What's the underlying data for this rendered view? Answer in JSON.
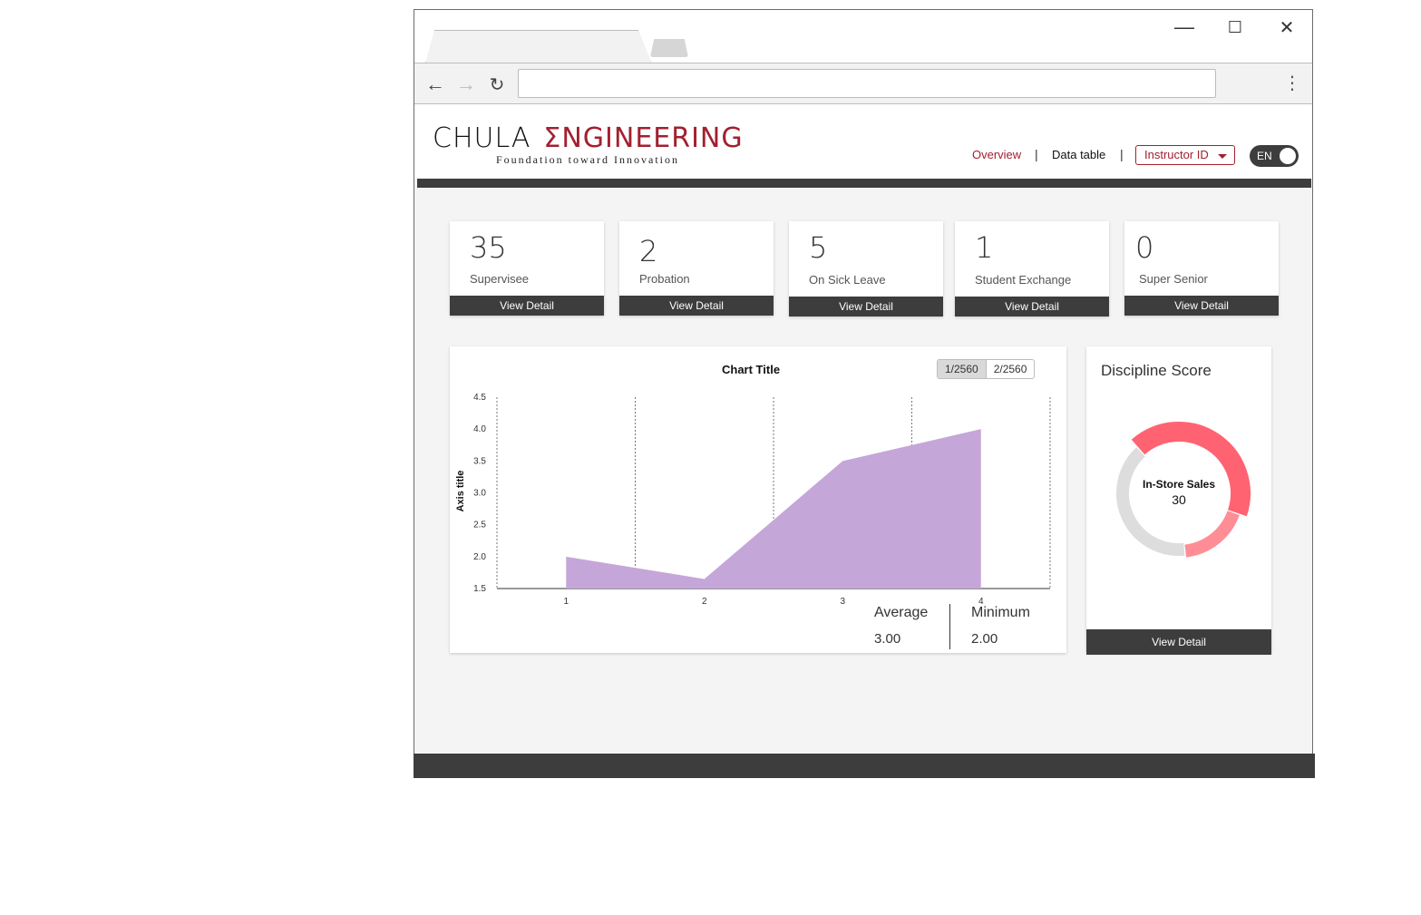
{
  "browser": {
    "address": "",
    "controls": {
      "minimize": "—",
      "maximize": "☐",
      "close": "✕"
    }
  },
  "logo": {
    "part1": "CHULA",
    "part2": "ΣNGINEERING",
    "tagline": "Foundation toward Innovation"
  },
  "nav": {
    "overview": "Overview",
    "datatable": "Data table",
    "separator": "|",
    "instructor": "Instructor ID",
    "lang": "EN"
  },
  "colors": {
    "accent": "#a2202f",
    "dark": "#3d3d3d",
    "area": "#c5a6d9",
    "donut_red": "#ff6372",
    "donut_pink": "#ff8d96",
    "donut_grey": "#dddddd"
  },
  "cards": [
    {
      "value": "35",
      "label": "Supervisee",
      "button": "View Detail"
    },
    {
      "value": "2",
      "label": "Probation",
      "button": "View Detail"
    },
    {
      "value": "5",
      "label": "On Sick Leave",
      "button": "View Detail"
    },
    {
      "value": "1",
      "label": "Student Exchange",
      "button": "View Detail"
    },
    {
      "value": "0",
      "label": "Super Senior",
      "button": "View Detail"
    }
  ],
  "chart": {
    "segments": [
      "1/2560",
      "2/2560"
    ],
    "average_label": "Average",
    "average_value": "3.00",
    "minimum_label": "Minimum",
    "minimum_value": "2.00"
  },
  "chart_data": {
    "type": "area",
    "title": "Chart Title",
    "ylabel": "Axis title",
    "xlabel": "",
    "x": [
      1,
      2,
      3,
      4
    ],
    "values": [
      2.0,
      1.65,
      3.5,
      4.0
    ],
    "xlim": [
      0.5,
      4.5
    ],
    "ylim": [
      1.5,
      4.5
    ],
    "yticks": [
      "1.5",
      "2.0",
      "2.5",
      "3.0",
      "3.5",
      "4.0",
      "4.5"
    ],
    "xticks": [
      "1",
      "2",
      "3",
      "4"
    ],
    "grid": "vertical dotted"
  },
  "discipline": {
    "title": "Discipline Score",
    "center_label": "In-Store Sales",
    "center_value": "30",
    "button": "View Detail",
    "slices": [
      {
        "value": 0.42,
        "color": "#ff6372"
      },
      {
        "value": 0.18,
        "color": "#ff8d96"
      },
      {
        "value": 0.4,
        "color": "#dddddd"
      }
    ]
  }
}
